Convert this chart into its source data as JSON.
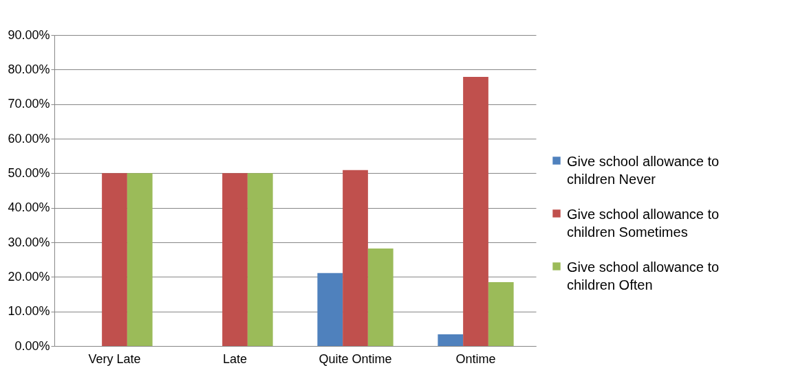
{
  "chart_data": {
    "type": "bar",
    "categories": [
      "Very Late",
      "Late",
      "Quite Ontime",
      "Ontime"
    ],
    "series": [
      {
        "name": "Give school allowance to children Never",
        "color": "#4f81bd",
        "values": [
          0,
          0,
          21.1,
          3.4
        ]
      },
      {
        "name": "Give school allowance to children Sometimes",
        "color": "#c0504d",
        "values": [
          50,
          50,
          50.9,
          77.9
        ]
      },
      {
        "name": "Give school allowance to children Often",
        "color": "#9bbb59",
        "values": [
          50,
          50,
          28.2,
          18.5
        ]
      }
    ],
    "ylim": [
      0,
      90
    ],
    "yticks": [
      {
        "value": 0,
        "label": "0.00%"
      },
      {
        "value": 10,
        "label": "10.00%"
      },
      {
        "value": 20,
        "label": "20.00%"
      },
      {
        "value": 30,
        "label": "30.00%"
      },
      {
        "value": 40,
        "label": "40.00%"
      },
      {
        "value": 50,
        "label": "50.00%"
      },
      {
        "value": 60,
        "label": "60.00%"
      },
      {
        "value": 70,
        "label": "70.00%"
      },
      {
        "value": 80,
        "label": "80.00%"
      },
      {
        "value": 90,
        "label": "90.00%"
      }
    ],
    "grid": "y",
    "legend": "right"
  }
}
